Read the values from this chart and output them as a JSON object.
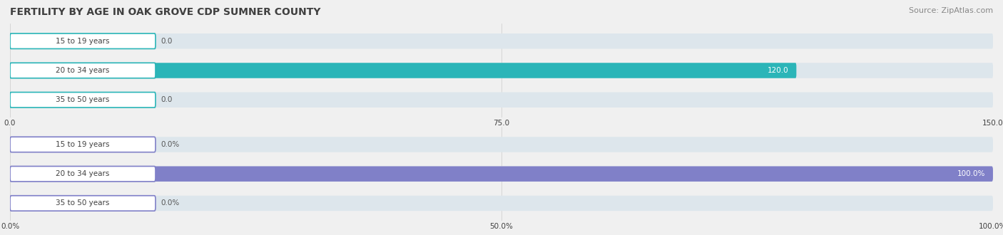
{
  "title": "FERTILITY BY AGE IN OAK GROVE CDP SUMNER COUNTY",
  "source": "Source: ZipAtlas.com",
  "top_chart": {
    "categories": [
      "15 to 19 years",
      "20 to 34 years",
      "35 to 50 years"
    ],
    "values": [
      0.0,
      120.0,
      0.0
    ],
    "xlim": [
      0,
      150
    ],
    "xticks": [
      0.0,
      75.0,
      150.0
    ],
    "xtick_labels": [
      "0.0",
      "75.0",
      "150.0"
    ],
    "bar_color": "#2bb5b8",
    "bar_bg_color": "#dde6ec",
    "value_color_inside": "#ffffff",
    "value_color_outside": "#555555",
    "label_box_edge": "#2bb5b8"
  },
  "bottom_chart": {
    "categories": [
      "15 to 19 years",
      "20 to 34 years",
      "35 to 50 years"
    ],
    "values": [
      0.0,
      100.0,
      0.0
    ],
    "xlim": [
      0,
      100
    ],
    "xticks": [
      0.0,
      50.0,
      100.0
    ],
    "xtick_labels": [
      "0.0%",
      "50.0%",
      "100.0%"
    ],
    "bar_color": "#8080c8",
    "bar_bg_color": "#dde6ec",
    "value_color_inside": "#ffffff",
    "value_color_outside": "#555555",
    "label_box_edge": "#8080c8"
  },
  "bg_color": "#f0f0f0",
  "title_color": "#404040",
  "source_color": "#888888",
  "title_fontsize": 10,
  "source_fontsize": 8,
  "label_fontsize": 7.5,
  "value_fontsize": 7.5,
  "tick_fontsize": 7.5,
  "bar_height": 0.52,
  "label_box_color": "#ffffff"
}
